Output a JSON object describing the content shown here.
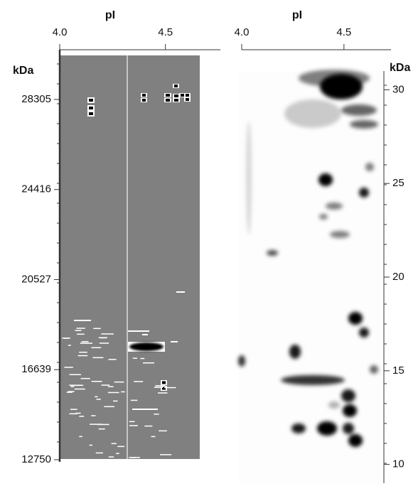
{
  "chart_data": [
    {
      "type": "gel",
      "x_label": "pI",
      "y_label": "kDa",
      "xlim": [
        4.0,
        4.76
      ],
      "xticks": [
        {
          "value": 4.0,
          "label": "4.0"
        },
        4.5
      ],
      "ylim": [
        12658,
        30452
      ],
      "yticks": [
        28305,
        24416,
        20527,
        16639,
        12750
      ]
    },
    {
      "type": "gel",
      "x_label": "pI",
      "y_label": "kDa",
      "xlim": [
        4.0,
        4.73
      ],
      "xticks": [
        {
          "value": 4.0,
          "label": "4.0"
        },
        4.5
      ],
      "ylim": [
        9,
        31
      ],
      "yticks": [
        30,
        25,
        20,
        15,
        10
      ]
    }
  ]
}
